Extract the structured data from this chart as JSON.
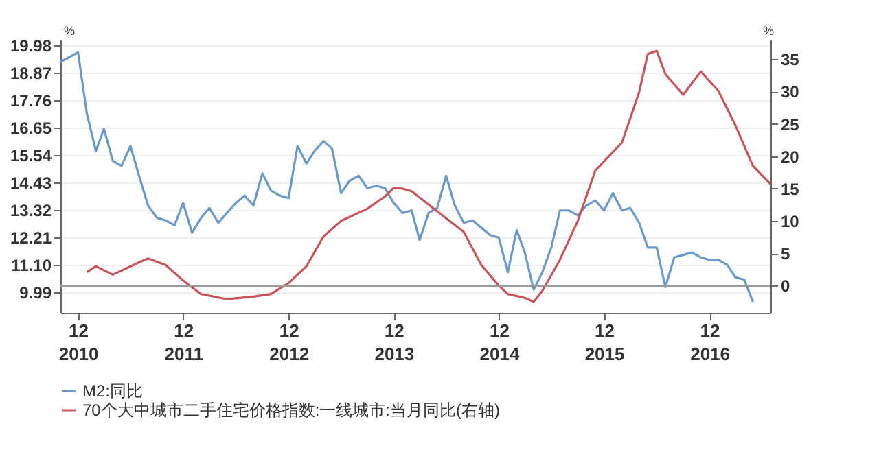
{
  "chart_data": {
    "type": "line",
    "ylabel": "%",
    "y2label": "%",
    "xlim": [
      "2010-10",
      "2017-07"
    ],
    "xticks": [
      {
        "value": "2010-12",
        "label": "12\n2010"
      },
      {
        "value": "2011-12",
        "label": "12\n2011"
      },
      {
        "value": "2012-12",
        "label": "12\n2012"
      },
      {
        "value": "2013-12",
        "label": "12\n2013"
      },
      {
        "value": "2014-12",
        "label": "12\n2014"
      },
      {
        "value": "2015-12",
        "label": "12\n2015"
      },
      {
        "value": "2016-12",
        "label": "12\n2016"
      }
    ],
    "ylim": [
      9.16,
      20.2
    ],
    "yticks": [
      9.99,
      {
        "value": 11.1,
        "label": "11.10"
      },
      12.21,
      13.32,
      14.43,
      15.54,
      16.65,
      17.76,
      18.87,
      19.98
    ],
    "y2lim": [
      -4.2,
      38
    ],
    "y2ticks": [
      0,
      5,
      10,
      15,
      20,
      25,
      30,
      35
    ],
    "grid": "y",
    "legend": "bottom",
    "ref_lines": [
      {
        "axis": "y2",
        "value": 0,
        "color": "#9a9a9a"
      }
    ],
    "series": [
      {
        "name": "M2:同比",
        "color": "#6a9ac9",
        "x": [
          "2010-10",
          "2010-11",
          "2010-12",
          "2011-01",
          "2011-02",
          "2011-03",
          "2011-04",
          "2011-05",
          "2011-06",
          "2011-07",
          "2011-08",
          "2011-09",
          "2011-10",
          "2011-11",
          "2011-12",
          "2012-01",
          "2012-02",
          "2012-03",
          "2012-04",
          "2012-05",
          "2012-06",
          "2012-07",
          "2012-08",
          "2012-09",
          "2012-10",
          "2012-11",
          "2012-12",
          "2013-01",
          "2013-02",
          "2013-03",
          "2013-04",
          "2013-05",
          "2013-06",
          "2013-07",
          "2013-08",
          "2013-09",
          "2013-10",
          "2013-11",
          "2013-12",
          "2014-01",
          "2014-02",
          "2014-03",
          "2014-04",
          "2014-05",
          "2014-06",
          "2014-07",
          "2014-08",
          "2014-09",
          "2014-10",
          "2014-11",
          "2014-12",
          "2015-01",
          "2015-02",
          "2015-03",
          "2015-04",
          "2015-05",
          "2015-06",
          "2015-07",
          "2015-08",
          "2015-09",
          "2015-10",
          "2015-11",
          "2015-12",
          "2016-01",
          "2016-02",
          "2016-03",
          "2016-04",
          "2016-05",
          "2016-06",
          "2016-07",
          "2016-08",
          "2016-09",
          "2016-10",
          "2016-11",
          "2016-12",
          "2017-01",
          "2017-02",
          "2017-03",
          "2017-04",
          "2017-05"
        ],
        "values": [
          19.3,
          19.5,
          19.7,
          17.2,
          15.7,
          16.6,
          15.3,
          15.1,
          15.9,
          14.7,
          13.5,
          13.0,
          12.9,
          12.7,
          13.6,
          12.4,
          13.0,
          13.4,
          12.8,
          13.2,
          13.6,
          13.9,
          13.5,
          14.8,
          14.1,
          13.9,
          13.8,
          15.9,
          15.2,
          15.7,
          16.1,
          15.8,
          14.0,
          14.5,
          14.7,
          14.2,
          14.3,
          14.2,
          13.6,
          13.2,
          13.3,
          12.1,
          13.2,
          13.4,
          14.7,
          13.5,
          12.8,
          12.9,
          12.6,
          12.3,
          12.2,
          10.8,
          12.5,
          11.6,
          10.1,
          10.8,
          11.8,
          13.3,
          13.3,
          13.1,
          13.5,
          13.7,
          13.3,
          14.0,
          13.3,
          13.4,
          12.8,
          11.8,
          11.8,
          10.2,
          11.4,
          11.5,
          11.6,
          11.4,
          11.3,
          11.3,
          11.1,
          10.6,
          10.5,
          9.6
        ]
      },
      {
        "name": "70个大中城市二手住宅价格指数:一线城市:当月同比(右轴)",
        "color": "#c9555a",
        "axis": "y2",
        "x": [
          "2011-01",
          "2011-02",
          "2011-04",
          "2011-07",
          "2011-08",
          "2011-10",
          "2011-12",
          "2012-02",
          "2012-05",
          "2012-08",
          "2012-10",
          "2012-12",
          "2013-02",
          "2013-04",
          "2013-06",
          "2013-09",
          "2013-11",
          "2013-12",
          "2014-01",
          "2014-02",
          "2014-05",
          "2014-08",
          "2014-10",
          "2014-12",
          "2015-01",
          "2015-03",
          "2015-04",
          "2015-05",
          "2015-07",
          "2015-09",
          "2015-11",
          "2016-02",
          "2016-04",
          "2016-05",
          "2016-06",
          "2016-07",
          "2016-09",
          "2016-11",
          "2017-01",
          "2017-03",
          "2017-05",
          "2017-07"
        ],
        "values": [
          2.1,
          3.0,
          1.7,
          3.6,
          4.2,
          3.2,
          0.8,
          -1.3,
          -2.1,
          -1.7,
          -1.3,
          0.4,
          3.0,
          7.6,
          10.0,
          11.9,
          13.8,
          15.1,
          15.0,
          14.6,
          11.5,
          8.3,
          3.2,
          0,
          -1.3,
          -1.9,
          -2.5,
          -0.8,
          4.0,
          10.0,
          17.8,
          22.1,
          29.9,
          35.8,
          36.3,
          32.7,
          29.5,
          33.1,
          30.1,
          24.8,
          18.5,
          15.7
        ]
      }
    ]
  }
}
